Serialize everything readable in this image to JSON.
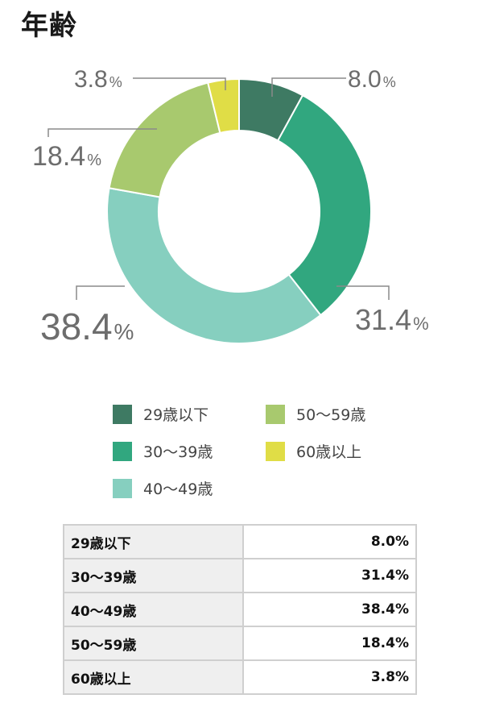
{
  "title": "年齢",
  "chart_data": {
    "type": "pie",
    "title": "年齢",
    "categories": [
      "29歳以下",
      "30〜39歳",
      "40〜49歳",
      "50〜59歳",
      "60歳以上"
    ],
    "values": [
      8.0,
      31.4,
      38.4,
      18.4,
      3.8
    ],
    "unit": "%",
    "labels": [
      "8.0",
      "31.4",
      "38.4",
      "18.4",
      "3.8"
    ],
    "colors": [
      "#3e7a63",
      "#31a77f",
      "#86cfbf",
      "#a8c96e",
      "#e0dd46"
    ],
    "donut": true
  },
  "legend": [
    {
      "label": "29歳以下",
      "color": "#3e7a63"
    },
    {
      "label": "30〜39歳",
      "color": "#31a77f"
    },
    {
      "label": "40〜49歳",
      "color": "#86cfbf"
    },
    {
      "label": "50〜59歳",
      "color": "#a8c96e"
    },
    {
      "label": "60歳以上",
      "color": "#e0dd46"
    }
  ],
  "table": {
    "rows": [
      {
        "label": "29歳以下",
        "value": "8.0%"
      },
      {
        "label": "30〜39歳",
        "value": "31.4%"
      },
      {
        "label": "40〜49歳",
        "value": "38.4%"
      },
      {
        "label": "50〜59歳",
        "value": "18.4%"
      },
      {
        "label": "60歳以上",
        "value": "3.8%"
      }
    ]
  }
}
